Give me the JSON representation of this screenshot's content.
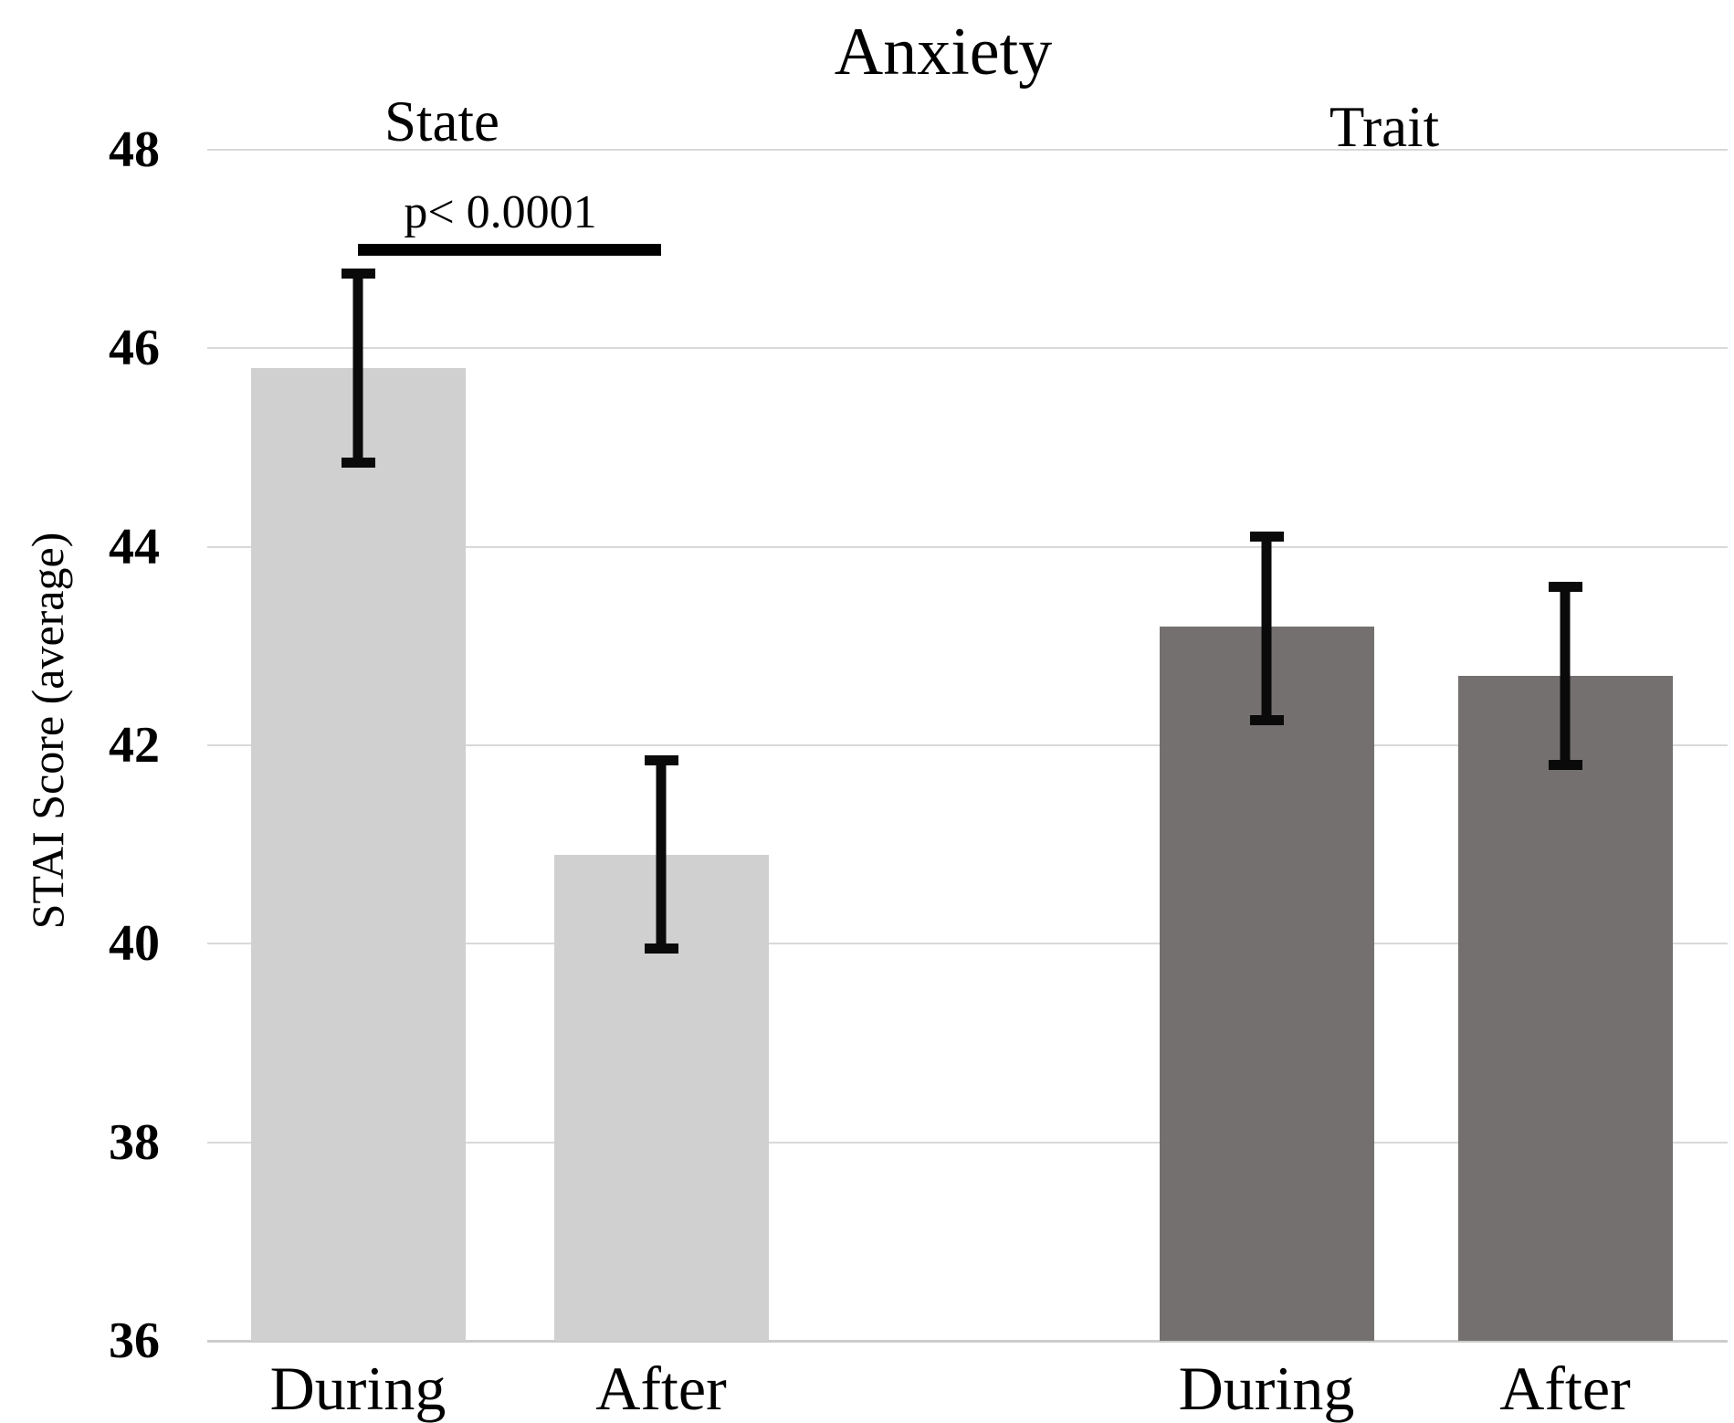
{
  "chart_data": {
    "type": "bar",
    "title": "Anxiety",
    "ylabel": "STAI Score (average)",
    "xlabel": "",
    "ylim": [
      36,
      48
    ],
    "yticks": [
      48,
      46,
      44,
      42,
      40,
      38,
      36
    ],
    "grid": "horizontal light-gray gridlines",
    "legend": "none",
    "group_labels": [
      "State",
      "Trait"
    ],
    "categories": [
      "During",
      "After"
    ],
    "series": [
      {
        "name": "State",
        "color": "#d1d0d0",
        "bars": [
          {
            "category": "During",
            "value": 45.8,
            "error_low": 44.8,
            "error_high": 46.8
          },
          {
            "category": "After",
            "value": 40.9,
            "error_low": 39.9,
            "error_high": 41.9
          }
        ]
      },
      {
        "name": "Trait",
        "color": "#747070",
        "bars": [
          {
            "category": "During",
            "value": 43.2,
            "error_low": 42.2,
            "error_high": 44.15
          },
          {
            "category": "After",
            "value": 42.7,
            "error_low": 41.75,
            "error_high": 43.65
          }
        ]
      }
    ],
    "annotation": {
      "label": "p< 0.0001",
      "group": "State",
      "between": [
        "During",
        "After"
      ],
      "line_y": 47.0
    }
  },
  "colors": {
    "background": "#ffffff",
    "gridline": "#d9d9d9",
    "baseline": "#cccccc",
    "text": "#000000",
    "error_bar": "#0a0a0a",
    "state_bar": "#d1d0d0",
    "trait_bar": "#747070"
  }
}
